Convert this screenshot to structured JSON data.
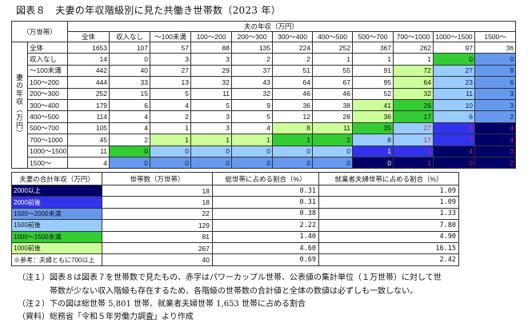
{
  "title": "図表８　夫妻の年収階級別に見た共働き世帯数（2023 年）",
  "table1": {
    "unit_label": "（万世帯）",
    "husband_header": "夫の年収（万円）",
    "wife_header": "妻の年収（万円）",
    "columns": [
      "全体",
      "収入なし",
      "～100未満",
      "100～200",
      "200～300",
      "300～400",
      "400～500",
      "500～700",
      "700～1000",
      "1000～1500",
      "1500～"
    ],
    "rows": [
      {
        "label": "全体",
        "values": [
          1653,
          107,
          57,
          88,
          135,
          224,
          252,
          367,
          262,
          97,
          36
        ],
        "colors": [
          "w",
          "w",
          "w",
          "w",
          "w",
          "w",
          "w",
          "w",
          "w",
          "w",
          "w"
        ],
        "red": []
      },
      {
        "label": "収入なし",
        "values": [
          14,
          0,
          3,
          3,
          2,
          2,
          1,
          1,
          1,
          0,
          0
        ],
        "colors": [
          "w",
          "w",
          "w",
          "w",
          "w",
          "w",
          "w",
          "w",
          "w",
          "g",
          "mb"
        ],
        "red": []
      },
      {
        "label": "～100未満",
        "values": [
          442,
          40,
          27,
          29,
          37,
          51,
          55,
          91,
          72,
          27,
          8
        ],
        "colors": [
          "w",
          "w",
          "w",
          "w",
          "w",
          "w",
          "w",
          "w",
          "lg",
          "lb",
          "mb"
        ],
        "red": []
      },
      {
        "label": "100～200",
        "values": [
          444,
          33,
          13,
          32,
          43,
          64,
          67,
          95,
          64,
          23,
          6
        ],
        "colors": [
          "w",
          "w",
          "w",
          "w",
          "w",
          "w",
          "w",
          "w",
          "lg",
          "lb",
          "mb"
        ],
        "red": []
      },
      {
        "label": "200～300",
        "values": [
          252,
          15,
          5,
          11,
          32,
          46,
          46,
          52,
          32,
          11,
          3
        ],
        "colors": [
          "w",
          "w",
          "w",
          "w",
          "w",
          "w",
          "w",
          "w",
          "lg",
          "lb",
          "mb"
        ],
        "red": []
      },
      {
        "label": "300～400",
        "values": [
          179,
          6,
          4,
          5,
          9,
          36,
          38,
          41,
          26,
          10,
          3
        ],
        "colors": [
          "w",
          "w",
          "w",
          "w",
          "w",
          "w",
          "w",
          "lg",
          "g",
          "lb",
          "mb"
        ],
        "red": []
      },
      {
        "label": "400～500",
        "values": [
          114,
          4,
          2,
          3,
          5,
          12,
          28,
          36,
          17,
          6,
          2
        ],
        "colors": [
          "w",
          "w",
          "w",
          "w",
          "w",
          "w",
          "w",
          "lg",
          "g",
          "lb",
          "mb"
        ],
        "red": []
      },
      {
        "label": "500～700",
        "values": [
          105,
          4,
          1,
          3,
          4,
          8,
          11,
          35,
          27,
          8,
          4
        ],
        "colors": [
          "w",
          "w",
          "w",
          "w",
          "w",
          "lg",
          "lg",
          "g",
          "lb",
          "b",
          "n"
        ],
        "red": [
          8,
          9,
          10
        ]
      },
      {
        "label": "700～1000",
        "values": [
          45,
          2,
          1,
          1,
          1,
          1,
          2,
          8,
          17,
          7,
          4
        ],
        "colors": [
          "w",
          "w",
          "lg",
          "lg",
          "lg",
          "g",
          "g",
          "lb",
          "lb",
          "b",
          "n"
        ],
        "red": [
          8,
          9,
          10
        ]
      },
      {
        "label": "1000～1500",
        "values": [
          11,
          0,
          0,
          0,
          0,
          0,
          0,
          1,
          2,
          4,
          3
        ],
        "colors": [
          "w",
          "g",
          "lb",
          "lb",
          "lb",
          "lb",
          "lb",
          "b",
          "b",
          "n",
          "n"
        ],
        "red": [
          8,
          9,
          10
        ]
      },
      {
        "label": "1500～",
        "values": [
          4,
          0,
          0,
          0,
          0,
          0,
          0,
          0,
          1,
          0,
          2
        ],
        "colors": [
          "w",
          "mb",
          "mb",
          "mb",
          "mb",
          "mb",
          "mb",
          "n",
          "n",
          "n",
          "n"
        ],
        "red": [
          8,
          9,
          10
        ]
      }
    ]
  },
  "palette": {
    "w": "#ffffff",
    "lg": "#ccff99",
    "g": "#33cc33",
    "lb": "#99ccff",
    "mb": "#6699ee",
    "b": "#3333ee",
    "n": "#000066",
    "red_text": "#e0204a"
  },
  "table2": {
    "headers": [
      "夫妻の合計年収（万円）",
      "世帯数（万世帯）",
      "総世帯に占める割合（%）",
      "就業者夫婦世帯に占める割合（%）"
    ],
    "rows": [
      {
        "label": "2000以上",
        "color": "n",
        "households": "18",
        "share_total": "0.31",
        "share_working": "1.09"
      },
      {
        "label": "2000前後",
        "color": "b",
        "households": "18",
        "share_total": "0.31",
        "share_working": "1.09"
      },
      {
        "label": "1500～2000未満",
        "color": "mb",
        "households": "22",
        "share_total": "0.38",
        "share_working": "1.33"
      },
      {
        "label": "1500前後",
        "color": "lb",
        "households": "129",
        "share_total": "2.22",
        "share_working": "7.80"
      },
      {
        "label": "1000～1500未満",
        "color": "g",
        "households": "81",
        "share_total": "1.40",
        "share_working": "4.90"
      },
      {
        "label": "1000前後",
        "color": "lg",
        "households": "267",
        "share_total": "4.60",
        "share_working": "16.15"
      },
      {
        "label": "※参考：夫婦ともに700以上",
        "color": "w",
        "households": "40",
        "share_total": "0.69",
        "share_working": "2.42"
      }
    ]
  },
  "notes": {
    "note1_line1": "（注１）図表８は図表７を世帯数で見たもの、赤字はパワーカップル世帯、公表値の集計単位（１万世帯）に対して世",
    "note1_line2": "帯数が少ない収入階級も存在するため、各階級の世帯数の合計値と全体の数値は必ずしも一致しない。",
    "note2": "（注２）下の図は総世帯 5,801 世帯、就業者夫婦世帯 1,653 世帯に占める割合",
    "source": "（資料）総務省「令和５年労働力調査」より作成"
  }
}
